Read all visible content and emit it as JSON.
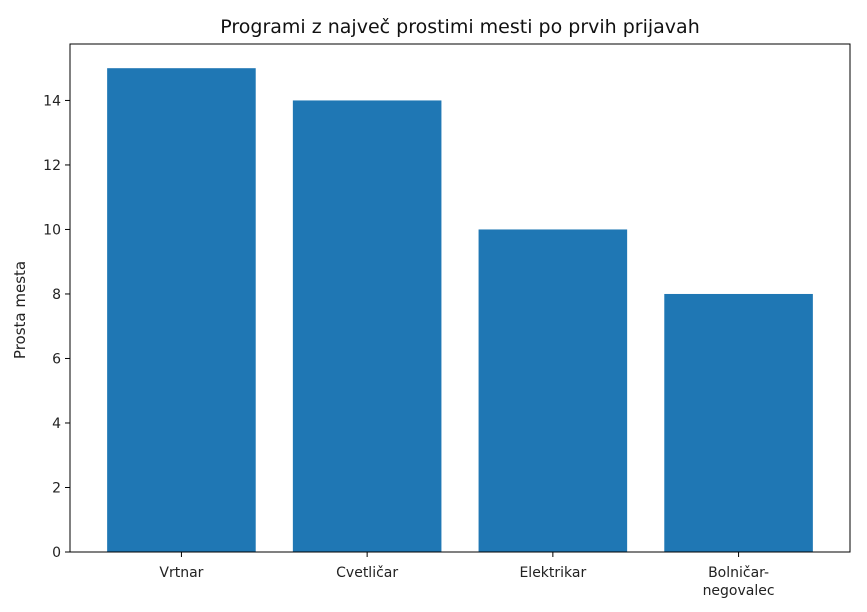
{
  "chart_data": {
    "type": "bar",
    "title": "Programi z največ prostimi mesti po prvih prijavah",
    "xlabel": "",
    "ylabel": "Prosta mesta",
    "categories": [
      [
        "Vrtnar"
      ],
      [
        "Cvetličar"
      ],
      [
        "Elektrikar"
      ],
      [
        "Bolničar-",
        "negovalec"
      ]
    ],
    "values": [
      15,
      14,
      10,
      8
    ],
    "ylim": [
      0,
      15.75
    ],
    "yticks": [
      0,
      2,
      4,
      6,
      8,
      10,
      12,
      14
    ],
    "bar_color": "#1f77b4",
    "grid": false,
    "legend": "none"
  }
}
